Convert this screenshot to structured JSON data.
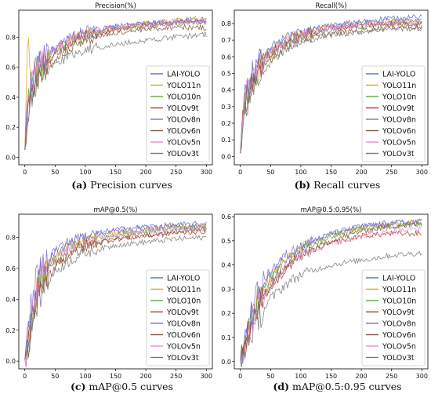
{
  "colors": {
    "LAI-YOLO": "#4a6fcf",
    "YOLO11n": "#e0a21a",
    "YOLO10n": "#5aaa46",
    "YOLOv9t": "#b23a2e",
    "YOLOv8n": "#8b6dc7",
    "YOLOv6n": "#7f5a3a",
    "YOLOv5n": "#e58ed8",
    "YOLOv3t": "#7a7a7a"
  },
  "chart_data": [
    {
      "type": "line",
      "title": "Precision(%)",
      "caption_label": "(a)",
      "caption_text": " Precision curves",
      "xlabel": "",
      "ylabel": "",
      "xlim": [
        -10,
        310
      ],
      "ylim": [
        -0.05,
        0.98
      ],
      "xticks": [
        0,
        50,
        100,
        150,
        200,
        250,
        300
      ],
      "yticks": [
        0.0,
        0.2,
        0.4,
        0.6,
        0.8
      ],
      "ytick_labels": [
        "0.0",
        "0.2",
        "0.4",
        "0.6",
        "0.8"
      ],
      "grid": false,
      "legend": "lower-right",
      "x": [
        0,
        5,
        10,
        20,
        30,
        50,
        75,
        100,
        150,
        200,
        250,
        300
      ],
      "series": [
        {
          "name": "LAI-YOLO",
          "values": [
            0.05,
            0.45,
            0.5,
            0.6,
            0.65,
            0.72,
            0.79,
            0.83,
            0.87,
            0.89,
            0.91,
            0.92
          ]
        },
        {
          "name": "YOLO11n",
          "values": [
            0.05,
            0.85,
            0.55,
            0.58,
            0.63,
            0.71,
            0.78,
            0.82,
            0.86,
            0.89,
            0.91,
            0.93
          ]
        },
        {
          "name": "YOLO10n",
          "values": [
            0.05,
            0.4,
            0.45,
            0.55,
            0.6,
            0.69,
            0.76,
            0.8,
            0.85,
            0.87,
            0.89,
            0.9
          ]
        },
        {
          "name": "YOLOv9t",
          "values": [
            0.05,
            0.35,
            0.45,
            0.55,
            0.62,
            0.7,
            0.77,
            0.81,
            0.85,
            0.88,
            0.9,
            0.9
          ]
        },
        {
          "name": "YOLOv8n",
          "values": [
            0.05,
            0.4,
            0.5,
            0.6,
            0.66,
            0.74,
            0.8,
            0.84,
            0.87,
            0.89,
            0.9,
            0.91
          ]
        },
        {
          "name": "YOLOv6n",
          "values": [
            0.05,
            0.3,
            0.4,
            0.5,
            0.57,
            0.66,
            0.73,
            0.78,
            0.83,
            0.85,
            0.87,
            0.86
          ]
        },
        {
          "name": "YOLOv5n",
          "values": [
            0.05,
            0.45,
            0.5,
            0.58,
            0.64,
            0.73,
            0.79,
            0.83,
            0.86,
            0.88,
            0.89,
            0.9
          ]
        },
        {
          "name": "YOLOv3t",
          "values": [
            0.05,
            0.3,
            0.4,
            0.48,
            0.55,
            0.62,
            0.68,
            0.72,
            0.75,
            0.78,
            0.8,
            0.82
          ]
        }
      ]
    },
    {
      "type": "line",
      "title": "Recall(%)",
      "caption_label": "(b)",
      "caption_text": " Recall curves",
      "xlabel": "",
      "ylabel": "",
      "xlim": [
        -10,
        310
      ],
      "ylim": [
        -0.05,
        0.88
      ],
      "xticks": [
        0,
        50,
        100,
        150,
        200,
        250,
        300
      ],
      "yticks": [
        0.0,
        0.1,
        0.2,
        0.3,
        0.4,
        0.5,
        0.6,
        0.7,
        0.8
      ],
      "ytick_labels": [
        "0.0",
        "0.1",
        "0.2",
        "0.3",
        "0.4",
        "0.5",
        "0.6",
        "0.7",
        "0.8"
      ],
      "grid": false,
      "legend": "lower-right",
      "x": [
        0,
        5,
        10,
        20,
        30,
        50,
        75,
        100,
        150,
        200,
        250,
        300
      ],
      "series": [
        {
          "name": "LAI-YOLO",
          "values": [
            0.02,
            0.3,
            0.4,
            0.5,
            0.57,
            0.65,
            0.71,
            0.75,
            0.79,
            0.81,
            0.83,
            0.84
          ]
        },
        {
          "name": "YOLO11n",
          "values": [
            0.02,
            0.28,
            0.38,
            0.48,
            0.55,
            0.63,
            0.7,
            0.74,
            0.78,
            0.8,
            0.81,
            0.81
          ]
        },
        {
          "name": "YOLO10n",
          "values": [
            0.02,
            0.25,
            0.35,
            0.46,
            0.53,
            0.62,
            0.68,
            0.72,
            0.76,
            0.78,
            0.8,
            0.8
          ]
        },
        {
          "name": "YOLOv9t",
          "values": [
            0.02,
            0.25,
            0.36,
            0.47,
            0.54,
            0.62,
            0.69,
            0.73,
            0.77,
            0.79,
            0.8,
            0.8
          ]
        },
        {
          "name": "YOLOv8n",
          "values": [
            0.02,
            0.3,
            0.4,
            0.5,
            0.56,
            0.64,
            0.7,
            0.74,
            0.78,
            0.8,
            0.82,
            0.82
          ]
        },
        {
          "name": "YOLOv6n",
          "values": [
            0.02,
            0.22,
            0.32,
            0.43,
            0.5,
            0.59,
            0.66,
            0.7,
            0.74,
            0.76,
            0.78,
            0.78
          ]
        },
        {
          "name": "YOLOv5n",
          "values": [
            0.02,
            0.28,
            0.38,
            0.48,
            0.55,
            0.63,
            0.69,
            0.73,
            0.77,
            0.79,
            0.8,
            0.8
          ]
        },
        {
          "name": "YOLOv3t",
          "values": [
            0.02,
            0.2,
            0.3,
            0.42,
            0.49,
            0.58,
            0.65,
            0.69,
            0.73,
            0.75,
            0.77,
            0.77
          ]
        }
      ]
    },
    {
      "type": "line",
      "title": "mAP@0.5(%)",
      "caption_label": "(c)",
      "caption_text": " mAP@0.5 curves",
      "xlabel": "",
      "ylabel": "",
      "xlim": [
        -10,
        310
      ],
      "ylim": [
        -0.05,
        0.95
      ],
      "xticks": [
        0,
        50,
        100,
        150,
        200,
        250,
        300
      ],
      "yticks": [
        0.0,
        0.2,
        0.4,
        0.6,
        0.8
      ],
      "ytick_labels": [
        "0.0",
        "0.2",
        "0.4",
        "0.6",
        "0.8"
      ],
      "grid": false,
      "legend": "lower-right",
      "x": [
        0,
        5,
        10,
        20,
        30,
        50,
        75,
        100,
        150,
        200,
        250,
        300
      ],
      "series": [
        {
          "name": "LAI-YOLO",
          "values": [
            0.01,
            0.15,
            0.3,
            0.5,
            0.6,
            0.7,
            0.77,
            0.81,
            0.85,
            0.87,
            0.88,
            0.89
          ]
        },
        {
          "name": "YOLO11n",
          "values": [
            0.01,
            0.12,
            0.28,
            0.47,
            0.57,
            0.68,
            0.75,
            0.79,
            0.83,
            0.85,
            0.87,
            0.87
          ]
        },
        {
          "name": "YOLO10n",
          "values": [
            0.01,
            0.1,
            0.25,
            0.44,
            0.55,
            0.66,
            0.73,
            0.77,
            0.82,
            0.84,
            0.86,
            0.86
          ]
        },
        {
          "name": "YOLOv9t",
          "values": [
            0.01,
            0.1,
            0.24,
            0.42,
            0.53,
            0.64,
            0.71,
            0.75,
            0.79,
            0.81,
            0.83,
            0.84
          ]
        },
        {
          "name": "YOLOv8n",
          "values": [
            0.01,
            0.18,
            0.35,
            0.55,
            0.63,
            0.72,
            0.78,
            0.81,
            0.84,
            0.86,
            0.87,
            0.87
          ]
        },
        {
          "name": "YOLOv6n",
          "values": [
            0.01,
            0.08,
            0.2,
            0.38,
            0.49,
            0.61,
            0.69,
            0.74,
            0.79,
            0.82,
            0.84,
            0.85
          ]
        },
        {
          "name": "YOLOv5n",
          "values": [
            0.01,
            0.12,
            0.28,
            0.46,
            0.56,
            0.66,
            0.73,
            0.77,
            0.81,
            0.84,
            0.85,
            0.86
          ]
        },
        {
          "name": "YOLOv3t",
          "values": [
            0.01,
            0.08,
            0.2,
            0.37,
            0.47,
            0.58,
            0.65,
            0.7,
            0.75,
            0.77,
            0.79,
            0.8
          ]
        }
      ]
    },
    {
      "type": "line",
      "title": "mAP@0.5:0.95(%)",
      "caption_label": "(d)",
      "caption_text": " mAP@0.5:0.95 curves",
      "xlabel": "",
      "ylabel": "",
      "xlim": [
        -10,
        310
      ],
      "ylim": [
        -0.03,
        0.61
      ],
      "xticks": [
        0,
        50,
        100,
        150,
        200,
        250,
        300
      ],
      "yticks": [
        0.0,
        0.1,
        0.2,
        0.3,
        0.4,
        0.5,
        0.6
      ],
      "ytick_labels": [
        "0.0",
        "0.1",
        "0.2",
        "0.3",
        "0.4",
        "0.5",
        "0.6"
      ],
      "grid": false,
      "legend": "lower-right",
      "x": [
        0,
        5,
        10,
        20,
        30,
        50,
        75,
        100,
        150,
        200,
        250,
        300
      ],
      "series": [
        {
          "name": "LAI-YOLO",
          "values": [
            0.0,
            0.06,
            0.12,
            0.2,
            0.27,
            0.36,
            0.43,
            0.48,
            0.53,
            0.56,
            0.575,
            0.58
          ]
        },
        {
          "name": "YOLO11n",
          "values": [
            0.0,
            0.05,
            0.1,
            0.19,
            0.26,
            0.35,
            0.42,
            0.47,
            0.52,
            0.55,
            0.57,
            0.58
          ]
        },
        {
          "name": "YOLO10n",
          "values": [
            0.0,
            0.05,
            0.1,
            0.18,
            0.25,
            0.34,
            0.41,
            0.46,
            0.52,
            0.55,
            0.56,
            0.57
          ]
        },
        {
          "name": "YOLOv9t",
          "values": [
            0.0,
            0.04,
            0.09,
            0.17,
            0.23,
            0.32,
            0.39,
            0.44,
            0.49,
            0.52,
            0.53,
            0.53
          ]
        },
        {
          "name": "YOLOv8n",
          "values": [
            0.0,
            0.07,
            0.13,
            0.22,
            0.29,
            0.38,
            0.44,
            0.48,
            0.53,
            0.56,
            0.57,
            0.58
          ]
        },
        {
          "name": "YOLOv6n",
          "values": [
            0.0,
            0.04,
            0.08,
            0.16,
            0.22,
            0.31,
            0.38,
            0.44,
            0.5,
            0.54,
            0.56,
            0.57
          ]
        },
        {
          "name": "YOLOv5n",
          "values": [
            0.0,
            0.05,
            0.1,
            0.18,
            0.24,
            0.33,
            0.4,
            0.44,
            0.49,
            0.52,
            0.54,
            0.55
          ]
        },
        {
          "name": "YOLOv3t",
          "values": [
            0.0,
            0.03,
            0.07,
            0.13,
            0.18,
            0.26,
            0.32,
            0.36,
            0.4,
            0.42,
            0.44,
            0.45
          ]
        }
      ]
    }
  ]
}
